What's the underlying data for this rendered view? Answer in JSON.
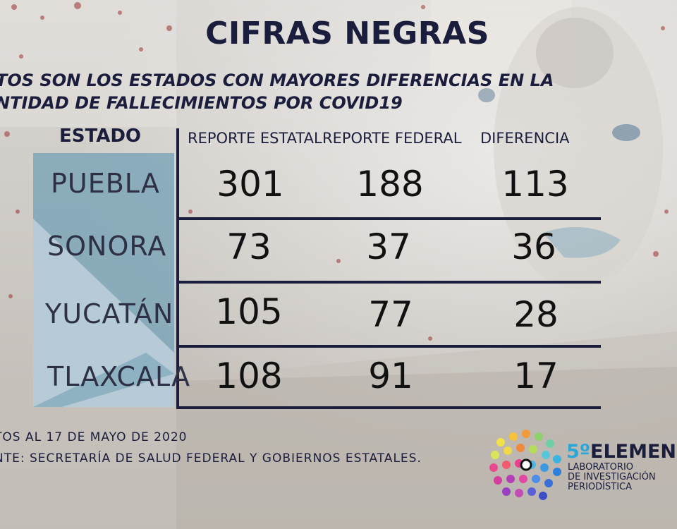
{
  "title": "CIFRAS NEGRAS",
  "subtitle": {
    "line1": "TOS SON LOS ESTADOS CON MAYORES DIFERENCIAS EN LA",
    "line2": "NTIDAD DE FALLECIMIENTOS POR COVID19"
  },
  "table": {
    "headers": {
      "estado": "ESTADO",
      "estatal": "REPORTE ESTATAL",
      "federal": "REPORTE FEDERAL",
      "diferencia": "DIFERENCIA"
    },
    "rows": [
      {
        "estado": "PUEBLA",
        "estatal": "301",
        "federal": "188",
        "diferencia": "113"
      },
      {
        "estado": "SONORA",
        "estatal": "73",
        "federal": "37",
        "diferencia": "36"
      },
      {
        "estado": "YUCATÁN",
        "estatal": "105",
        "federal": "77",
        "diferencia": "28"
      },
      {
        "estado": "TLAXCALA",
        "estatal": "108",
        "federal": "91",
        "diferencia": "17"
      }
    ]
  },
  "notes": {
    "date": "TOS AL 17 DE MAYO DE 2020",
    "source": "NTE: SECRETARÍA DE SALUD FEDERAL Y GOBIERNOS ESTATALES."
  },
  "logo": {
    "prefix": "5º",
    "name": "ELEMEN",
    "line1": "LABORATORIO",
    "line2": "DE INVESTIGACIÓN",
    "line3": "PERIODÍSTICA"
  },
  "colors": {
    "navy": "#1b1d3d",
    "panel_blue": "#7ea6b8",
    "accent": "#2aa6d8"
  }
}
